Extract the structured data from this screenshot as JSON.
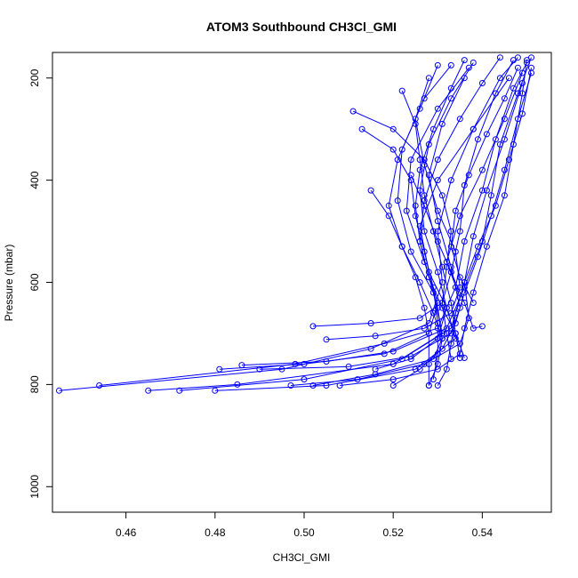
{
  "chart_data": {
    "type": "line",
    "title": "ATOM3 Southbound CH3Cl_GMI",
    "xlabel": "CH3Cl_GMI",
    "ylabel": "Pressure (mbar)",
    "xlim": [
      0.4435,
      0.5555
    ],
    "ylim": [
      1050,
      150
    ],
    "y_reversed": true,
    "x_ticks": [
      0.46,
      0.48,
      0.5,
      0.52,
      0.54
    ],
    "x_tick_labels": [
      "0.46",
      "0.48",
      "0.50",
      "0.52",
      "0.54"
    ],
    "y_ticks": [
      200,
      400,
      600,
      800,
      1000
    ],
    "y_tick_labels": [
      "200",
      "400",
      "600",
      "800",
      "1000"
    ],
    "grid": false,
    "color": "#0000ff",
    "series": [
      {
        "points": [
          [
            0.445,
            812
          ],
          [
            0.495,
            770
          ],
          [
            0.515,
            730
          ],
          [
            0.528,
            680
          ],
          [
            0.531,
            600
          ],
          [
            0.53,
            500
          ],
          [
            0.533,
            400
          ],
          [
            0.538,
            300
          ],
          [
            0.544,
            200
          ],
          [
            0.548,
            160
          ]
        ]
      },
      {
        "points": [
          [
            0.454,
            802
          ],
          [
            0.498,
            760
          ],
          [
            0.518,
            720
          ],
          [
            0.53,
            690
          ],
          [
            0.534,
            610
          ],
          [
            0.536,
            520
          ],
          [
            0.54,
            420
          ],
          [
            0.543,
            320
          ],
          [
            0.547,
            220
          ],
          [
            0.55,
            170
          ]
        ]
      },
      {
        "points": [
          [
            0.465,
            812
          ],
          [
            0.485,
            800
          ],
          [
            0.52,
            760
          ],
          [
            0.531,
            700
          ],
          [
            0.529,
            620
          ],
          [
            0.524,
            540
          ],
          [
            0.521,
            440
          ],
          [
            0.522,
            340
          ],
          [
            0.527,
            240
          ],
          [
            0.533,
            175
          ]
        ]
      },
      {
        "points": [
          [
            0.472,
            812
          ],
          [
            0.5,
            790
          ],
          [
            0.522,
            750
          ],
          [
            0.533,
            690
          ],
          [
            0.535,
            630
          ],
          [
            0.532,
            560
          ],
          [
            0.535,
            470
          ],
          [
            0.54,
            380
          ],
          [
            0.545,
            280
          ],
          [
            0.549,
            190
          ]
        ]
      },
      {
        "points": [
          [
            0.48,
            812
          ],
          [
            0.505,
            802
          ],
          [
            0.525,
            770
          ],
          [
            0.534,
            710
          ],
          [
            0.532,
            650
          ],
          [
            0.528,
            580
          ],
          [
            0.526,
            490
          ],
          [
            0.53,
            400
          ],
          [
            0.538,
            300
          ],
          [
            0.546,
            200
          ]
        ]
      },
      {
        "points": [
          [
            0.481,
            770
          ],
          [
            0.5,
            760
          ],
          [
            0.518,
            740
          ],
          [
            0.528,
            700
          ],
          [
            0.53,
            640
          ],
          [
            0.527,
            560
          ],
          [
            0.523,
            460
          ],
          [
            0.524,
            360
          ],
          [
            0.53,
            260
          ],
          [
            0.537,
            180
          ]
        ]
      },
      {
        "points": [
          [
            0.486,
            762
          ],
          [
            0.505,
            755
          ],
          [
            0.52,
            735
          ],
          [
            0.532,
            690
          ],
          [
            0.536,
            610
          ],
          [
            0.54,
            520
          ],
          [
            0.542,
            430
          ],
          [
            0.544,
            330
          ],
          [
            0.548,
            230
          ],
          [
            0.551,
            160
          ]
        ]
      },
      {
        "points": [
          [
            0.49,
            770
          ],
          [
            0.51,
            765
          ],
          [
            0.524,
            745
          ],
          [
            0.533,
            700
          ],
          [
            0.535,
            650
          ],
          [
            0.533,
            570
          ],
          [
            0.53,
            480
          ],
          [
            0.528,
            390
          ],
          [
            0.531,
            290
          ],
          [
            0.536,
            200
          ]
        ]
      },
      {
        "points": [
          [
            0.497,
            802
          ],
          [
            0.512,
            790
          ],
          [
            0.527,
            760
          ],
          [
            0.535,
            720
          ],
          [
            0.537,
            670
          ],
          [
            0.536,
            600
          ],
          [
            0.538,
            510
          ],
          [
            0.541,
            420
          ],
          [
            0.545,
            320
          ],
          [
            0.549,
            210
          ]
        ]
      },
      {
        "points": [
          [
            0.502,
            802
          ],
          [
            0.516,
            780
          ],
          [
            0.529,
            750
          ],
          [
            0.531,
            710
          ],
          [
            0.529,
            660
          ],
          [
            0.526,
            600
          ],
          [
            0.522,
            530
          ],
          [
            0.519,
            450
          ],
          [
            0.521,
            360
          ],
          [
            0.526,
            260
          ],
          [
            0.53,
            175
          ]
        ]
      },
      {
        "points": [
          [
            0.502,
            686
          ],
          [
            0.515,
            680
          ],
          [
            0.526,
            670
          ],
          [
            0.531,
            640
          ],
          [
            0.533,
            580
          ],
          [
            0.535,
            500
          ],
          [
            0.536,
            410
          ],
          [
            0.539,
            320
          ],
          [
            0.543,
            230
          ],
          [
            0.547,
            165
          ]
        ]
      },
      {
        "points": [
          [
            0.505,
            712
          ],
          [
            0.516,
            705
          ],
          [
            0.527,
            690
          ],
          [
            0.533,
            660
          ],
          [
            0.535,
            610
          ],
          [
            0.534,
            540
          ],
          [
            0.53,
            460
          ],
          [
            0.527,
            370
          ],
          [
            0.525,
            280
          ],
          [
            0.528,
            200
          ]
        ]
      },
      {
        "points": [
          [
            0.508,
            802
          ],
          [
            0.52,
            790
          ],
          [
            0.53,
            770
          ],
          [
            0.535,
            740
          ],
          [
            0.536,
            690
          ],
          [
            0.538,
            620
          ],
          [
            0.541,
            530
          ],
          [
            0.545,
            430
          ],
          [
            0.547,
            330
          ],
          [
            0.549,
            230
          ],
          [
            0.55,
            165
          ]
        ]
      },
      {
        "points": [
          [
            0.511,
            265
          ],
          [
            0.52,
            300
          ],
          [
            0.527,
            360
          ],
          [
            0.531,
            430
          ],
          [
            0.533,
            500
          ],
          [
            0.532,
            570
          ],
          [
            0.531,
            640
          ],
          [
            0.532,
            700
          ],
          [
            0.533,
            750
          ]
        ]
      },
      {
        "points": [
          [
            0.513,
            300
          ],
          [
            0.52,
            340
          ],
          [
            0.524,
            400
          ],
          [
            0.525,
            470
          ],
          [
            0.527,
            540
          ],
          [
            0.529,
            610
          ],
          [
            0.53,
            680
          ],
          [
            0.53,
            740
          ],
          [
            0.529,
            790
          ]
        ]
      },
      {
        "points": [
          [
            0.515,
            420
          ],
          [
            0.519,
            470
          ],
          [
            0.522,
            530
          ],
          [
            0.525,
            590
          ],
          [
            0.527,
            650
          ],
          [
            0.528,
            700
          ],
          [
            0.528,
            760
          ],
          [
            0.528,
            802
          ]
        ]
      },
      {
        "points": [
          [
            0.52,
            802
          ],
          [
            0.526,
            770
          ],
          [
            0.531,
            730
          ],
          [
            0.534,
            680
          ],
          [
            0.536,
            620
          ],
          [
            0.539,
            550
          ],
          [
            0.542,
            470
          ],
          [
            0.545,
            380
          ],
          [
            0.548,
            280
          ],
          [
            0.551,
            190
          ]
        ]
      },
      {
        "points": [
          [
            0.516,
            770
          ],
          [
            0.524,
            750
          ],
          [
            0.53,
            710
          ],
          [
            0.532,
            650
          ],
          [
            0.53,
            580
          ],
          [
            0.527,
            500
          ],
          [
            0.526,
            420
          ],
          [
            0.528,
            330
          ],
          [
            0.533,
            240
          ],
          [
            0.538,
            170
          ]
        ]
      },
      {
        "points": [
          [
            0.522,
            225
          ],
          [
            0.525,
            290
          ],
          [
            0.526,
            360
          ],
          [
            0.527,
            430
          ],
          [
            0.529,
            500
          ],
          [
            0.531,
            570
          ],
          [
            0.533,
            640
          ],
          [
            0.534,
            700
          ],
          [
            0.535,
            748
          ]
        ]
      },
      {
        "points": [
          [
            0.524,
            390
          ],
          [
            0.527,
            450
          ],
          [
            0.53,
            520
          ],
          [
            0.533,
            580
          ],
          [
            0.536,
            640
          ],
          [
            0.538,
            690
          ],
          [
            0.54,
            686
          ]
        ]
      },
      {
        "points": [
          [
            0.528,
            802
          ],
          [
            0.53,
            760
          ],
          [
            0.531,
            710
          ],
          [
            0.53,
            650
          ],
          [
            0.528,
            590
          ],
          [
            0.526,
            520
          ],
          [
            0.525,
            450
          ],
          [
            0.526,
            380
          ],
          [
            0.529,
            300
          ],
          [
            0.533,
            220
          ],
          [
            0.536,
            165
          ]
        ]
      },
      {
        "points": [
          [
            0.53,
            802
          ],
          [
            0.532,
            770
          ],
          [
            0.533,
            720
          ],
          [
            0.534,
            660
          ],
          [
            0.536,
            600
          ],
          [
            0.539,
            530
          ],
          [
            0.543,
            450
          ],
          [
            0.546,
            360
          ],
          [
            0.549,
            270
          ],
          [
            0.551,
            180
          ]
        ]
      },
      {
        "points": [
          [
            0.536,
            748
          ],
          [
            0.534,
            700
          ],
          [
            0.531,
            650
          ],
          [
            0.528,
            590
          ],
          [
            0.526,
            520
          ],
          [
            0.527,
            440
          ],
          [
            0.53,
            360
          ],
          [
            0.535,
            280
          ],
          [
            0.54,
            210
          ],
          [
            0.544,
            160
          ]
        ]
      },
      {
        "points": [
          [
            0.538,
            640
          ],
          [
            0.535,
            590
          ],
          [
            0.533,
            530
          ],
          [
            0.534,
            460
          ],
          [
            0.537,
            390
          ],
          [
            0.541,
            310
          ],
          [
            0.545,
            240
          ],
          [
            0.548,
            180
          ]
        ]
      }
    ]
  }
}
